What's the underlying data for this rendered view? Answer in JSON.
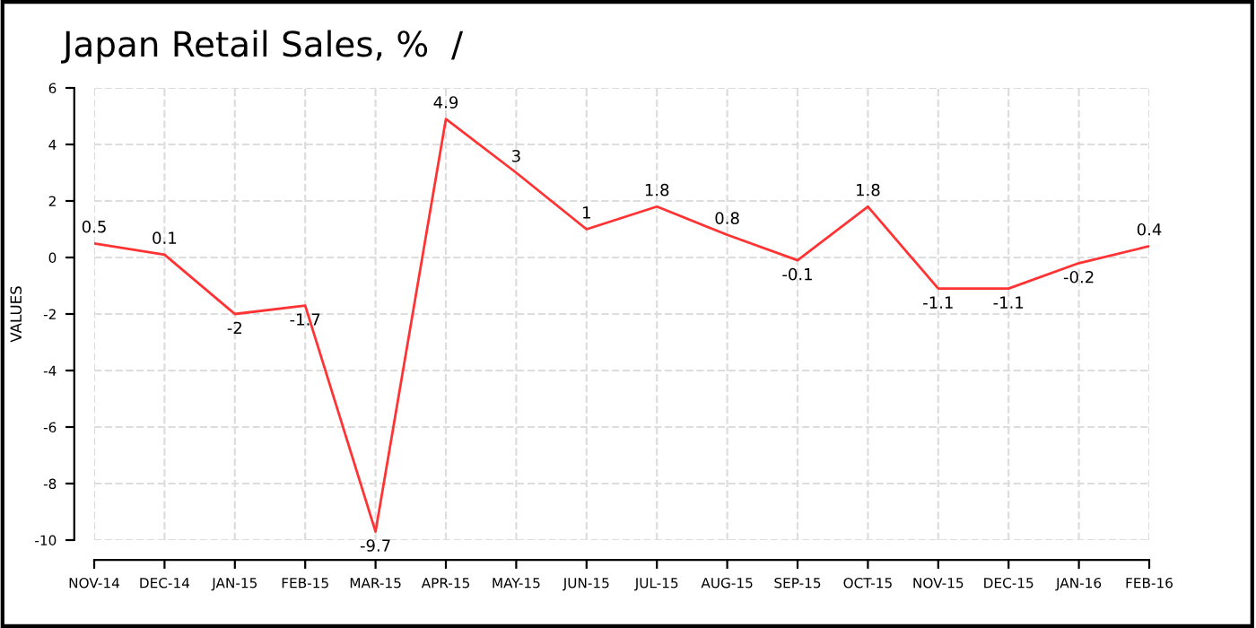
{
  "chart_data": {
    "type": "line",
    "title": "Japan Retail Sales, %  /",
    "ylabel": "VALUES",
    "categories": [
      "NOV-14",
      "DEC-14",
      "JAN-15",
      "FEB-15",
      "MAR-15",
      "APR-15",
      "MAY-15",
      "JUN-15",
      "JUL-15",
      "AUG-15",
      "SEP-15",
      "OCT-15",
      "NOV-15",
      "DEC-15",
      "JAN-16",
      "FEB-16"
    ],
    "series": [
      {
        "color": "#ff3333",
        "values": [
          0.5,
          0.1,
          -2,
          -1.7,
          -9.7,
          4.9,
          3,
          1,
          1.8,
          0.8,
          -0.1,
          1.8,
          -1.1,
          -1.1,
          -0.2,
          0.4
        ]
      }
    ],
    "ylim": [
      -10,
      6
    ],
    "yticks": [
      -10,
      -8,
      -6,
      -4,
      -2,
      0,
      2,
      4,
      6
    ],
    "grid": true,
    "data_labels": true,
    "legend": false,
    "marker": "none",
    "line_style": "solid"
  }
}
